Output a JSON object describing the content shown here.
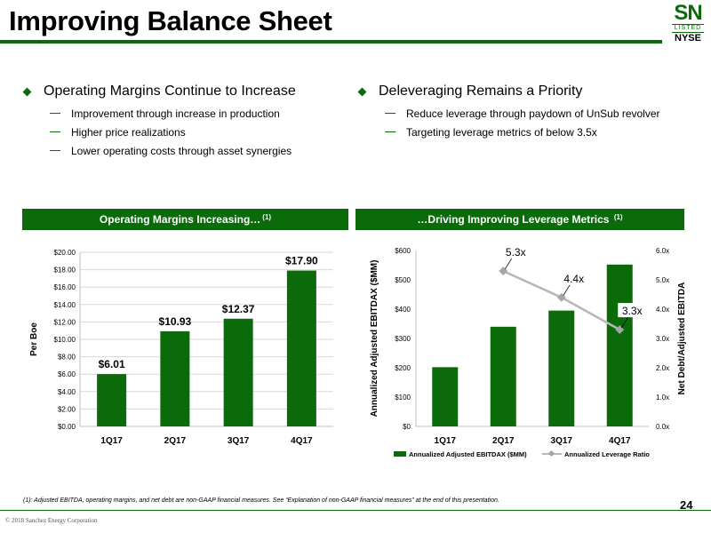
{
  "header": {
    "title": "Improving Balance Sheet",
    "logo": {
      "text": "SN",
      "listed": "LISTED",
      "exchange": "NYSE"
    }
  },
  "left_section": {
    "heading": "Operating Margins Continue to Increase",
    "points": [
      "Improvement through increase in production",
      "Higher price realizations",
      "Lower operating costs through asset synergies"
    ]
  },
  "right_section": {
    "heading": "Deleveraging Remains a Priority",
    "points": [
      "Reduce leverage through paydown of UnSub revolver",
      "Targeting leverage metrics of below 3.5x"
    ]
  },
  "banners": {
    "left": {
      "text": "Operating Margins Increasing…",
      "sup": "(1)"
    },
    "right": {
      "text": "…Driving Improving Leverage Metrics",
      "sup": "(1)"
    }
  },
  "colors": {
    "accent": "#0b6b0b",
    "bar": "#0b6b0b",
    "line": "#b7b7b7"
  },
  "chart_data": [
    {
      "type": "bar",
      "categories": [
        "1Q17",
        "2Q17",
        "3Q17",
        "4Q17"
      ],
      "values": [
        6.01,
        10.93,
        12.37,
        17.9
      ],
      "data_labels": [
        "$6.01",
        "$10.93",
        "$12.37",
        "$17.90"
      ],
      "ylabel": "Per Boe",
      "ylim": [
        0,
        20
      ],
      "yticks": [
        "$0.00",
        "$2.00",
        "$4.00",
        "$6.00",
        "$8.00",
        "$10.00",
        "$12.00",
        "$14.00",
        "$16.00",
        "$18.00",
        "$20.00"
      ],
      "grid": true
    },
    {
      "type": "bar",
      "categories": [
        "1Q17",
        "2Q17",
        "3Q17",
        "4Q17"
      ],
      "series": [
        {
          "name": "Annualized Adjusted EBITDAX ($MM)",
          "type": "bar",
          "axis": "left",
          "values": [
            202,
            340,
            395,
            552
          ]
        },
        {
          "name": "Annualized Leverage Ratio",
          "type": "line",
          "axis": "right",
          "values": [
            null,
            5.3,
            4.4,
            3.3
          ],
          "data_labels": [
            "",
            "5.3x",
            "4.4x",
            "3.3x"
          ]
        }
      ],
      "ylabel": "Annualized Adjusted EBITDAX ($MM)",
      "ylim": [
        0,
        600
      ],
      "yticks": [
        "$0",
        "$100",
        "$200",
        "$300",
        "$400",
        "$500",
        "$600"
      ],
      "y2label": "Net Debt/Adjusted EBITDA",
      "y2lim": [
        0,
        6
      ],
      "y2ticks": [
        "0.0x",
        "1.0x",
        "2.0x",
        "3.0x",
        "4.0x",
        "5.0x",
        "6.0x"
      ],
      "legend": "bottom",
      "grid": false
    }
  ],
  "footer": {
    "footnote": "(1):  Adjusted EBITDA, operating margins, and net debt are non-GAAP financial measures.  See “Explanation of non-GAAP financial measures” at the end of this presentation.",
    "copyright": "© 2018 Sanchez Energy Corporation",
    "page": "24"
  }
}
